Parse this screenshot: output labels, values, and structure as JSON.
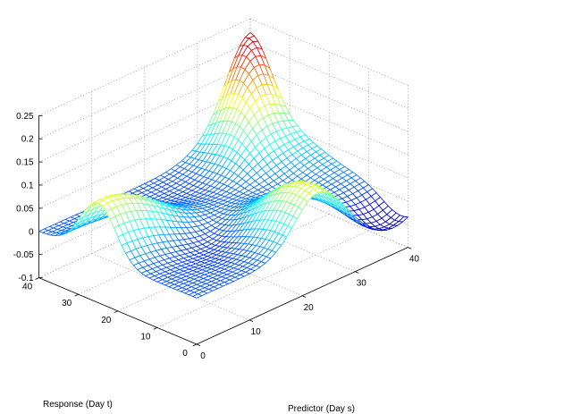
{
  "chart_data": {
    "type": "surface",
    "title": "",
    "xlabel": "Predictor (Day s)",
    "ylabel": "Response (Day t)",
    "zlabel": "",
    "xlim": [
      0,
      40
    ],
    "ylim": [
      0,
      40
    ],
    "zlim": [
      -0.1,
      0.25
    ],
    "x_ticks": [
      "0",
      "10",
      "20",
      "30",
      "40"
    ],
    "y_ticks": [
      "0",
      "10",
      "20",
      "30",
      "40"
    ],
    "z_ticks": [
      "-0.1",
      "-0.05",
      "0",
      "0.05",
      "0.1",
      "0.15",
      "0.2",
      "0.25"
    ],
    "grid": true,
    "colormap": "jet",
    "surface_features": [
      {
        "feature": "peak",
        "s": 40,
        "t": 40,
        "z": 0.22
      },
      {
        "feature": "hump",
        "s": 2,
        "t": 25,
        "z": 0.12
      },
      {
        "feature": "hump",
        "s": 23,
        "t": 4,
        "z": 0.12
      },
      {
        "feature": "trough",
        "s": 37,
        "t": 2,
        "z": -0.05
      }
    ]
  }
}
